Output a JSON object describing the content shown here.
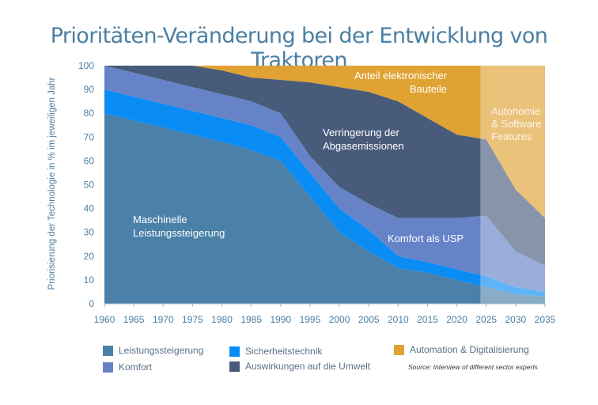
{
  "chart_data": {
    "type": "area",
    "stacked": true,
    "title": "Prioritäten-Veränderung bei der Entwicklung von Traktoren",
    "ylabel": "Priorisierung der Technologie in % im jeweiligen Jahr",
    "xlabel": "",
    "ylim": [
      0,
      100
    ],
    "yticks": [
      0,
      10,
      20,
      30,
      40,
      50,
      60,
      70,
      80,
      90,
      100
    ],
    "x": [
      1960,
      1965,
      1970,
      1975,
      1980,
      1985,
      1990,
      1995,
      2000,
      2005,
      2010,
      2015,
      2020,
      2025,
      2030,
      2035
    ],
    "forecast_from": 2024,
    "grid": false,
    "legend_position": "bottom",
    "series": [
      {
        "name": "Leistungssteigerung",
        "color": "#4b80a8",
        "values": [
          80,
          77,
          74,
          71,
          68,
          64.5,
          60,
          45,
          30,
          22,
          15,
          13,
          10,
          7,
          4,
          3
        ]
      },
      {
        "name": "Sicherheitstechnik",
        "color": "#0a8cf5",
        "values": [
          10,
          10,
          10,
          10,
          10,
          10.5,
          10,
          10,
          10,
          9,
          5,
          4.5,
          4.5,
          4.5,
          3,
          2
        ]
      },
      {
        "name": "Komfort",
        "color": "#6683c8",
        "values": [
          10,
          10,
          10,
          10,
          10,
          10,
          10,
          7,
          9,
          11,
          16,
          18.5,
          21.5,
          25.5,
          15,
          11
        ]
      },
      {
        "name": "Auswirkungen auf die Umwelt",
        "color": "#485b7b",
        "values": [
          0,
          3,
          6,
          9,
          10,
          10,
          14,
          31,
          42,
          47,
          49,
          42,
          35,
          32,
          26,
          20
        ]
      },
      {
        "name": "Automation & Digitalisierung",
        "color": "#dfa233",
        "values": [
          0,
          0,
          0,
          0,
          2,
          5,
          6,
          7,
          9,
          11,
          15,
          22,
          29,
          31,
          52,
          64
        ]
      }
    ],
    "annotations": [
      {
        "lines": [
          "Maschinelle",
          "Leistungssteigerung"
        ]
      },
      {
        "lines": [
          "Verringerung der",
          "Abgasemissionen"
        ]
      },
      {
        "lines": [
          "Anteil elektronischer",
          "Bauteile"
        ]
      },
      {
        "lines": [
          "Autonomie",
          "& Software",
          "Features"
        ]
      },
      {
        "lines": [
          "Komfort als USP"
        ]
      }
    ],
    "source": "Source: Interview of different sector experts"
  }
}
